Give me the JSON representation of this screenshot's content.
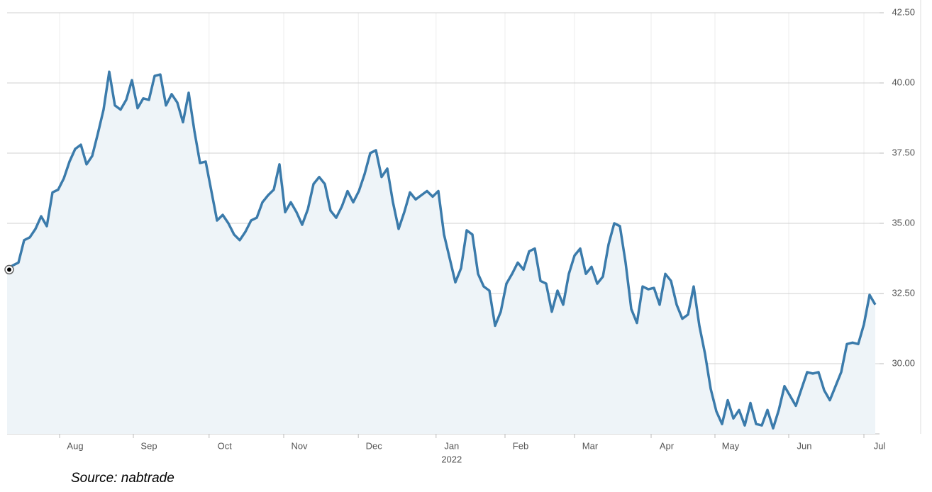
{
  "chart_data": {
    "type": "area",
    "values": [
      33.35,
      33.5,
      33.6,
      34.4,
      34.5,
      34.8,
      35.25,
      34.9,
      36.1,
      36.2,
      36.6,
      37.2,
      37.65,
      37.8,
      37.1,
      37.4,
      38.2,
      39.05,
      40.4,
      39.2,
      39.05,
      39.4,
      40.1,
      39.1,
      39.45,
      39.4,
      40.25,
      40.3,
      39.2,
      39.6,
      39.3,
      38.6,
      39.65,
      38.3,
      37.15,
      37.2,
      36.15,
      35.1,
      35.3,
      35.0,
      34.6,
      34.4,
      34.7,
      35.1,
      35.2,
      35.75,
      36.0,
      36.2,
      37.1,
      35.4,
      35.75,
      35.4,
      34.95,
      35.5,
      36.4,
      36.65,
      36.4,
      35.45,
      35.2,
      35.6,
      36.15,
      35.75,
      36.15,
      36.75,
      37.5,
      37.6,
      36.65,
      36.95,
      35.75,
      34.8,
      35.4,
      36.1,
      35.85,
      36.0,
      36.15,
      35.95,
      36.15,
      34.6,
      33.75,
      32.9,
      33.4,
      34.75,
      34.6,
      33.2,
      32.75,
      32.6,
      31.35,
      31.85,
      32.85,
      33.2,
      33.6,
      33.35,
      34.0,
      34.1,
      32.95,
      32.85,
      31.85,
      32.6,
      32.1,
      33.2,
      33.85,
      34.1,
      33.2,
      33.45,
      32.85,
      33.1,
      34.25,
      35.0,
      34.9,
      33.6,
      31.95,
      31.45,
      32.75,
      32.65,
      32.7,
      32.1,
      33.2,
      32.95,
      32.1,
      31.6,
      31.75,
      32.75,
      31.35,
      30.35,
      29.1,
      28.3,
      27.85,
      28.7,
      28.05,
      28.35,
      27.8,
      28.6,
      27.85,
      27.8,
      28.35,
      27.7,
      28.35,
      29.2,
      28.85,
      28.5,
      29.1,
      29.7,
      29.65,
      29.7,
      29.05,
      28.7,
      29.2,
      29.7,
      30.7,
      30.75,
      30.7,
      31.4,
      32.45,
      32.1
    ],
    "color": "#3b7bab",
    "fill": "#eef4f8",
    "xlim": [
      0,
      153
    ],
    "xticks": [
      {
        "value": 9.25,
        "label": "Aug"
      },
      {
        "value": 22.25,
        "label": "Sep"
      },
      {
        "value": 35.6,
        "label": "Oct"
      },
      {
        "value": 48.75,
        "label": "Nov"
      },
      {
        "value": 61.9,
        "label": "Dec"
      },
      {
        "value": 75.6,
        "label": "Jan"
      },
      {
        "value": 87.75,
        "label": "Feb"
      },
      {
        "value": 100,
        "label": "Mar"
      },
      {
        "value": 113.5,
        "label": "Apr"
      },
      {
        "value": 124.75,
        "label": "May"
      },
      {
        "value": 137.75,
        "label": "Jun"
      },
      {
        "value": 151,
        "label": "Jul"
      }
    ],
    "year_label": "2022",
    "ylim": [
      27.5,
      42.5
    ],
    "yticks": [
      {
        "value": 30,
        "label": "30.00"
      },
      {
        "value": 32.5,
        "label": "32.50"
      },
      {
        "value": 35,
        "label": "35.00"
      },
      {
        "value": 37.5,
        "label": "37.50"
      },
      {
        "value": 40,
        "label": "40.00"
      },
      {
        "value": 42.5,
        "label": "42.50"
      }
    ],
    "grid": true,
    "source": "Source: nabtrade"
  }
}
